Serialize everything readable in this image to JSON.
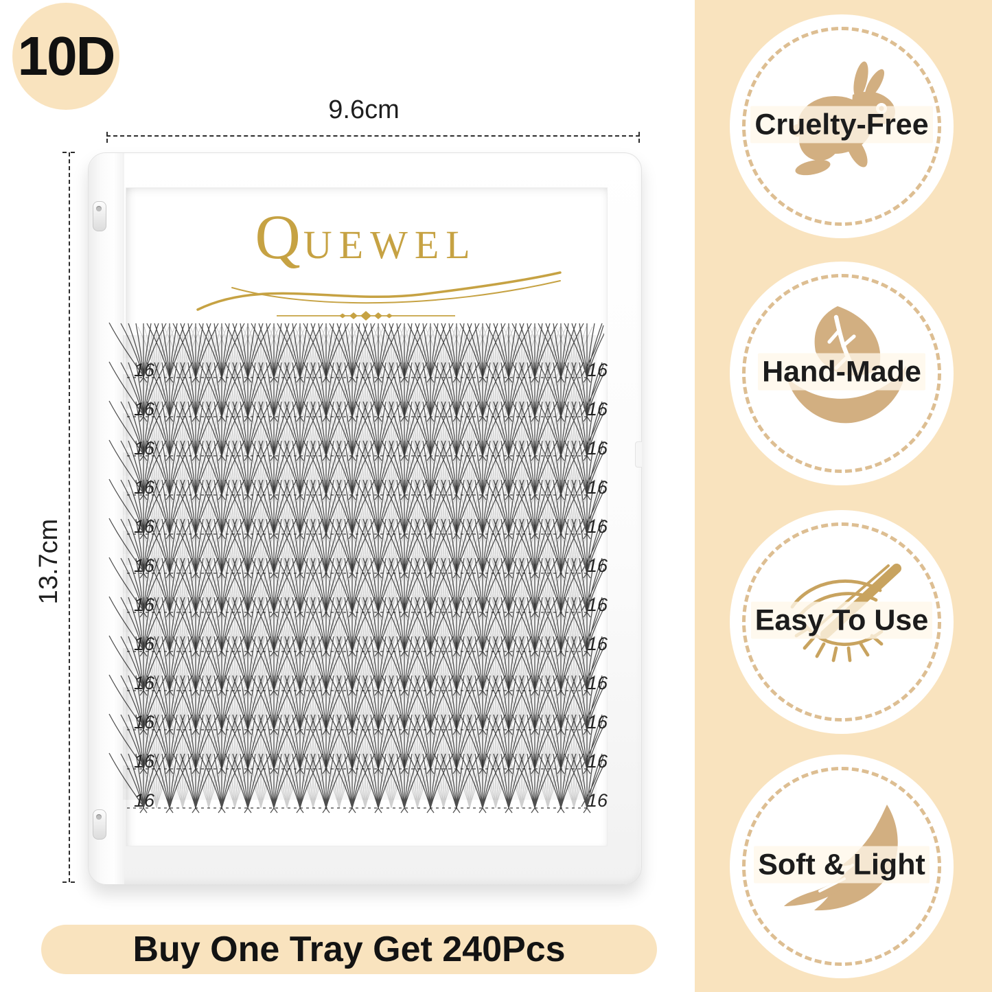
{
  "colors": {
    "peach": "#F9E3BE",
    "tan": "#D2AF81",
    "tan_dash": "#DDBE92",
    "gold": "#C6A243",
    "lash_black": "#222222"
  },
  "product_badge": {
    "label": "10D"
  },
  "dimensions": {
    "width_label": "9.6cm",
    "height_label": "13.7cm"
  },
  "brand": {
    "logo_text": "QUEWEL"
  },
  "tray": {
    "rows": [
      {
        "left": "16",
        "right": "16"
      },
      {
        "left": "16",
        "right": "16"
      },
      {
        "left": "16",
        "right": "16"
      },
      {
        "left": "16",
        "right": "16"
      },
      {
        "left": "16",
        "right": "16"
      },
      {
        "left": "16",
        "right": "16"
      },
      {
        "left": "16",
        "right": "16"
      },
      {
        "left": "16",
        "right": "16"
      },
      {
        "left": "16",
        "right": "16"
      },
      {
        "left": "16",
        "right": "16"
      },
      {
        "left": "16",
        "right": "16"
      },
      {
        "left": "16",
        "right": "16"
      }
    ]
  },
  "features": [
    {
      "label": "Cruelty-Free",
      "icon": "rabbit-icon"
    },
    {
      "label": "Hand-Made",
      "icon": "hand-leaf-icon"
    },
    {
      "label": "Easy To Use",
      "icon": "eye-tweezers-icon"
    },
    {
      "label": "Soft & Light",
      "icon": "feather-icon"
    }
  ],
  "banner": {
    "text": "Buy One Tray Get 240Pcs"
  }
}
